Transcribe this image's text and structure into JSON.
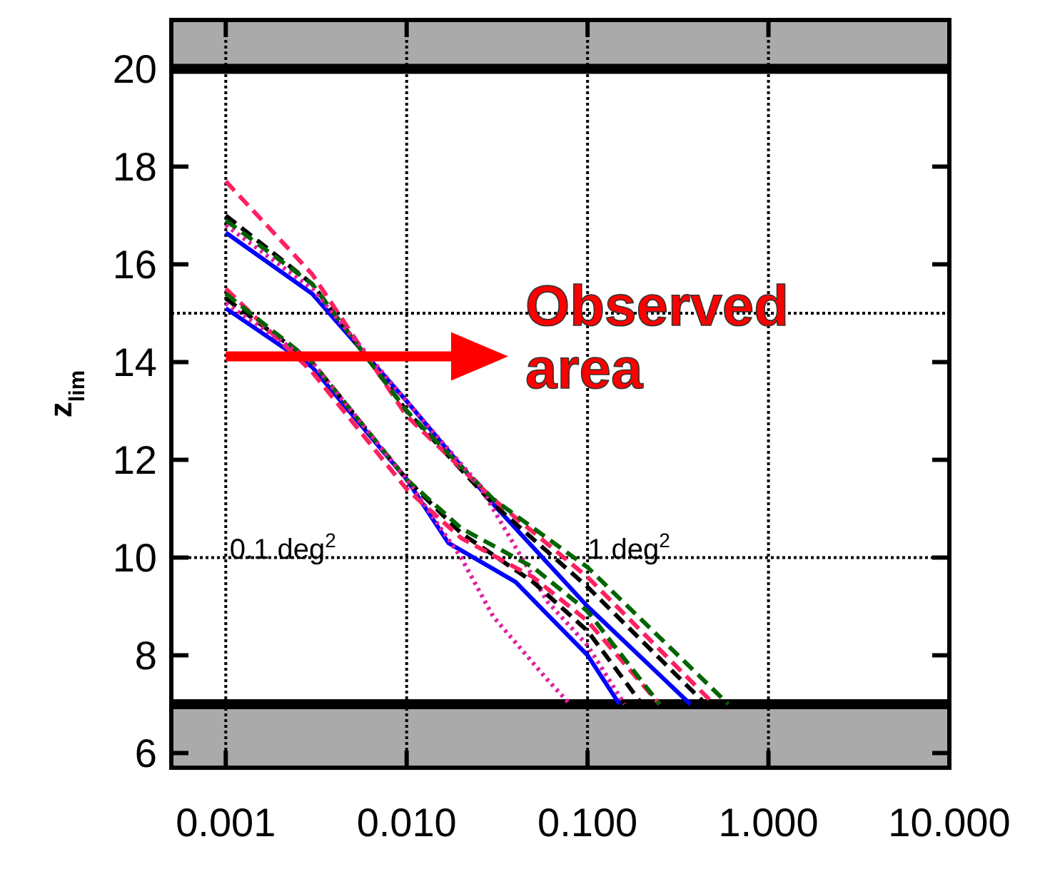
{
  "chart_data": {
    "type": "line",
    "ylabel": "z$_{lim}$",
    "log": "x",
    "grid": "x",
    "xlim": [
      0.0005,
      10
    ],
    "xticks": [
      {
        "value": 0.001,
        "label": "0.001"
      },
      {
        "value": 0.01,
        "label": "0.010"
      },
      {
        "value": 0.1,
        "label": "0.100"
      },
      {
        "value": 1,
        "label": "1.000"
      },
      {
        "value": 10,
        "label": "10.000"
      }
    ],
    "ylim": [
      5.7,
      21
    ],
    "yticks": [
      6,
      8,
      10,
      12,
      14,
      16,
      18,
      20
    ],
    "series": [
      {
        "color": "#0000ff",
        "line_style": "solid",
        "x": [
          0.001,
          0.003,
          0.01,
          0.03,
          0.1,
          0.25,
          0.37
        ],
        "values": [
          16.65,
          15.4,
          13.2,
          11.1,
          9.0,
          7.6,
          7.0
        ]
      },
      {
        "color": "#000000",
        "line_style": "dashed",
        "x": [
          0.001,
          0.003,
          0.01,
          0.03,
          0.1,
          0.45
        ],
        "values": [
          17.0,
          15.6,
          13.0,
          11.1,
          9.4,
          7.0
        ]
      },
      {
        "color": "#ff2060",
        "line_style": "dashed",
        "x": [
          0.001,
          0.003,
          0.01,
          0.03,
          0.1,
          0.5
        ],
        "values": [
          17.7,
          15.8,
          12.9,
          11.2,
          9.6,
          7.0
        ]
      },
      {
        "color": "#006400",
        "line_style": "dashed",
        "x": [
          0.001,
          0.003,
          0.01,
          0.03,
          0.1,
          0.6
        ],
        "values": [
          16.9,
          15.6,
          13.0,
          11.2,
          9.8,
          7.0
        ]
      },
      {
        "color": "#e020a0",
        "line_style": "dotted",
        "x": [
          0.001,
          0.003,
          0.01,
          0.025,
          0.06,
          0.1,
          0.16
        ],
        "values": [
          16.8,
          15.5,
          13.2,
          11.5,
          9.1,
          8.2,
          7.0
        ]
      },
      {
        "color": "#0000ff",
        "line_style": "solid",
        "x": [
          0.001,
          0.003,
          0.01,
          0.017,
          0.04,
          0.1,
          0.15
        ],
        "values": [
          15.1,
          13.9,
          11.6,
          10.3,
          9.5,
          8.0,
          7.0
        ]
      },
      {
        "color": "#000000",
        "line_style": "dashed",
        "x": [
          0.001,
          0.003,
          0.01,
          0.02,
          0.05,
          0.1,
          0.2
        ],
        "values": [
          15.3,
          14.0,
          11.6,
          10.5,
          9.5,
          8.5,
          7.0
        ]
      },
      {
        "color": "#ff2060",
        "line_style": "dashed",
        "x": [
          0.001,
          0.003,
          0.01,
          0.02,
          0.05,
          0.1,
          0.25
        ],
        "values": [
          15.5,
          13.8,
          11.4,
          10.4,
          9.6,
          8.7,
          7.0
        ]
      },
      {
        "color": "#006400",
        "line_style": "dashed",
        "x": [
          0.001,
          0.003,
          0.01,
          0.02,
          0.05,
          0.1,
          0.25
        ],
        "values": [
          15.4,
          14.0,
          11.6,
          10.6,
          9.8,
          8.9,
          7.0
        ]
      },
      {
        "color": "#e020a0",
        "line_style": "dotted",
        "x": [
          0.001,
          0.003,
          0.01,
          0.02,
          0.03,
          0.06,
          0.08
        ],
        "values": [
          15.2,
          14.0,
          11.6,
          10.0,
          8.8,
          7.5,
          7.0
        ]
      }
    ],
    "bands": [
      {
        "axis": "y",
        "from": 20,
        "to": 21,
        "color": "#aaaaaa"
      },
      {
        "axis": "y",
        "from": 5.7,
        "to": 7,
        "color": "#aaaaaa"
      }
    ],
    "ref_lines": [
      {
        "axis": "y",
        "value": 20,
        "color": "#000000",
        "line_style": "solid"
      },
      {
        "axis": "y",
        "value": 7,
        "color": "#000000",
        "line_style": "solid"
      },
      {
        "axis": "y",
        "value": 15,
        "color": "#000000",
        "line_style": "dotted"
      },
      {
        "axis": "y",
        "value": 10,
        "color": "#000000",
        "line_style": "dotted"
      }
    ],
    "annotations": [
      "Observed area",
      "0.1 deg$^{2}$",
      "1 deg$^{2}$"
    ]
  }
}
